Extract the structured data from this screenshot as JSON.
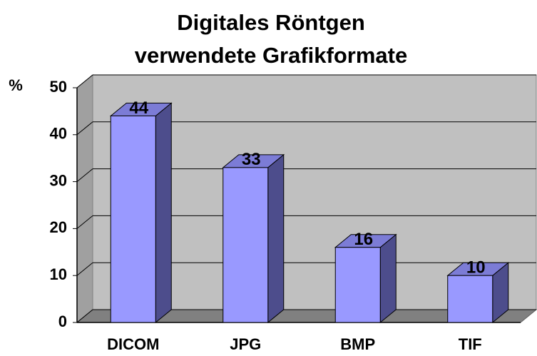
{
  "chart_data": {
    "type": "bar3d",
    "title": [
      "Digitales Röntgen",
      "verwendete Grafikformate"
    ],
    "y_label": "%",
    "categories": [
      "DICOM",
      "JPG",
      "BMP",
      "TIF"
    ],
    "values": [
      44,
      33,
      16,
      10
    ],
    "color": "#9999ff",
    "ylim": [
      0,
      50
    ],
    "yticks": [
      0,
      10,
      20,
      30,
      40,
      50
    ],
    "grid": true
  }
}
